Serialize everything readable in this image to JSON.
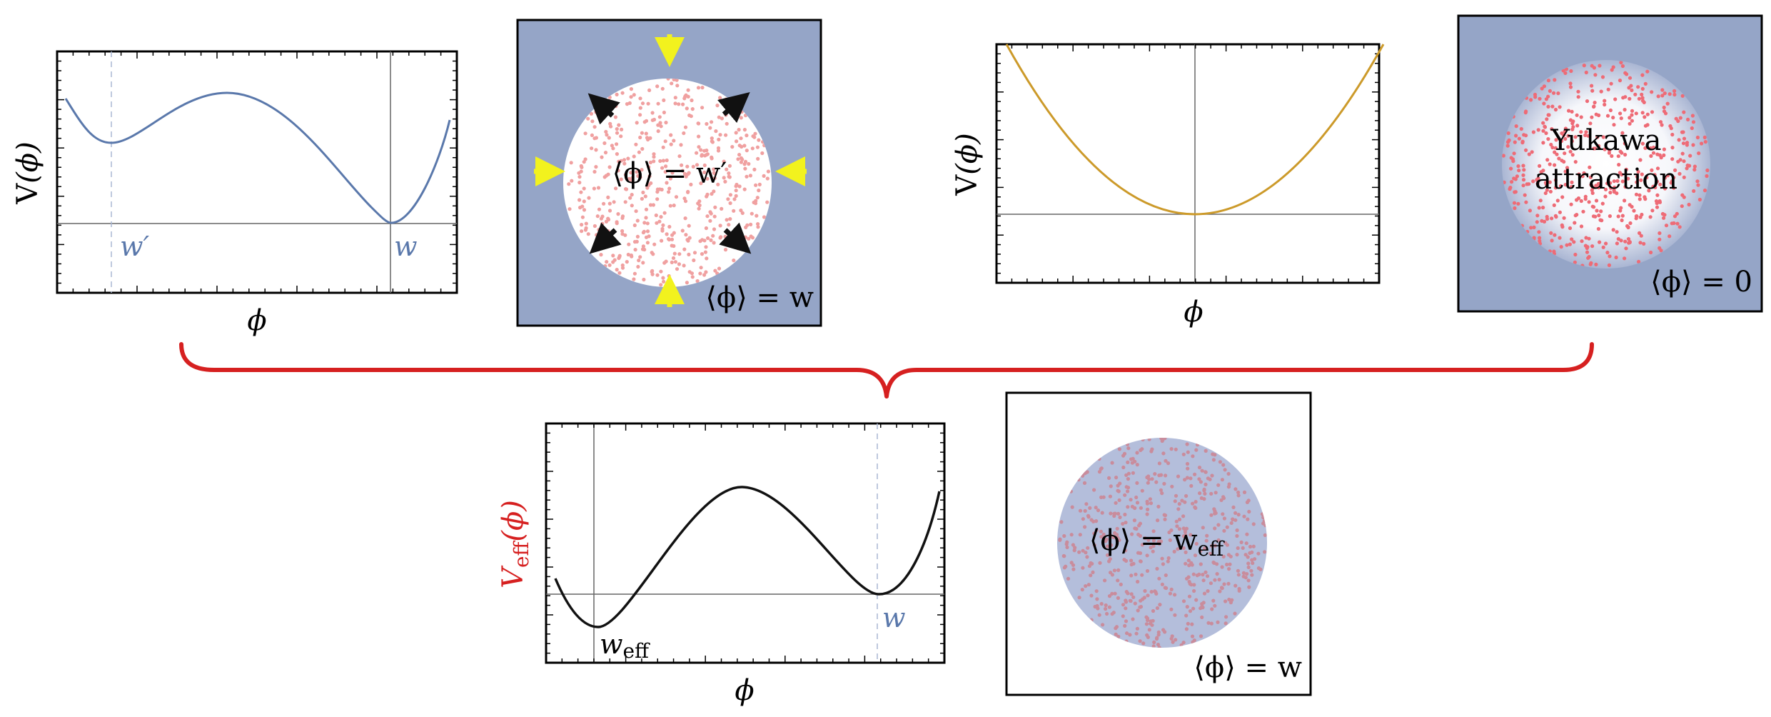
{
  "panels": {
    "top_left_plot": {
      "ylabel_main": "V",
      "ylabel_arg": "(ϕ)",
      "xlabel": "ϕ",
      "min_labels": {
        "false_vacuum": "w′",
        "true_vacuum": "w"
      },
      "curve_color": "#5a78ab"
    },
    "bubble_false_vacuum": {
      "inside_label": "⟨ϕ⟩ = w′",
      "outside_label": "⟨ϕ⟩ = w",
      "background_color": "#95a5c7",
      "particle_color": "#f0a0a0",
      "push_arrow_color": "#f2f21e",
      "expand_arrow_color": "#111111"
    },
    "top_right_plot": {
      "ylabel_main": "V",
      "ylabel_arg": "(ϕ)",
      "xlabel": "ϕ",
      "curve_color": "#cc9a2a"
    },
    "bubble_yukawa": {
      "inside_label_line1": "Yukawa",
      "inside_label_line2": "attraction",
      "outside_label": "⟨ϕ⟩ = 0",
      "background_color": "#95a5c7",
      "particle_color": "#ee6b76"
    },
    "brace": {
      "color": "#d62020"
    },
    "bottom_plot": {
      "ylabel_main": "V",
      "ylabel_sub": "eff",
      "ylabel_arg": "(ϕ)",
      "ylabel_color": "#d62020",
      "xlabel": "ϕ",
      "min_labels": {
        "shifted": "w",
        "shifted_sub": "eff",
        "original": "w"
      },
      "curve_color": "#111111"
    },
    "bubble_effective": {
      "inside_label": "⟨ϕ⟩ = w",
      "inside_sub": "eff",
      "outside_label": "⟨ϕ⟩ = w",
      "bubble_color": "#b4bedb",
      "particle_color": "#c98c9c"
    }
  }
}
